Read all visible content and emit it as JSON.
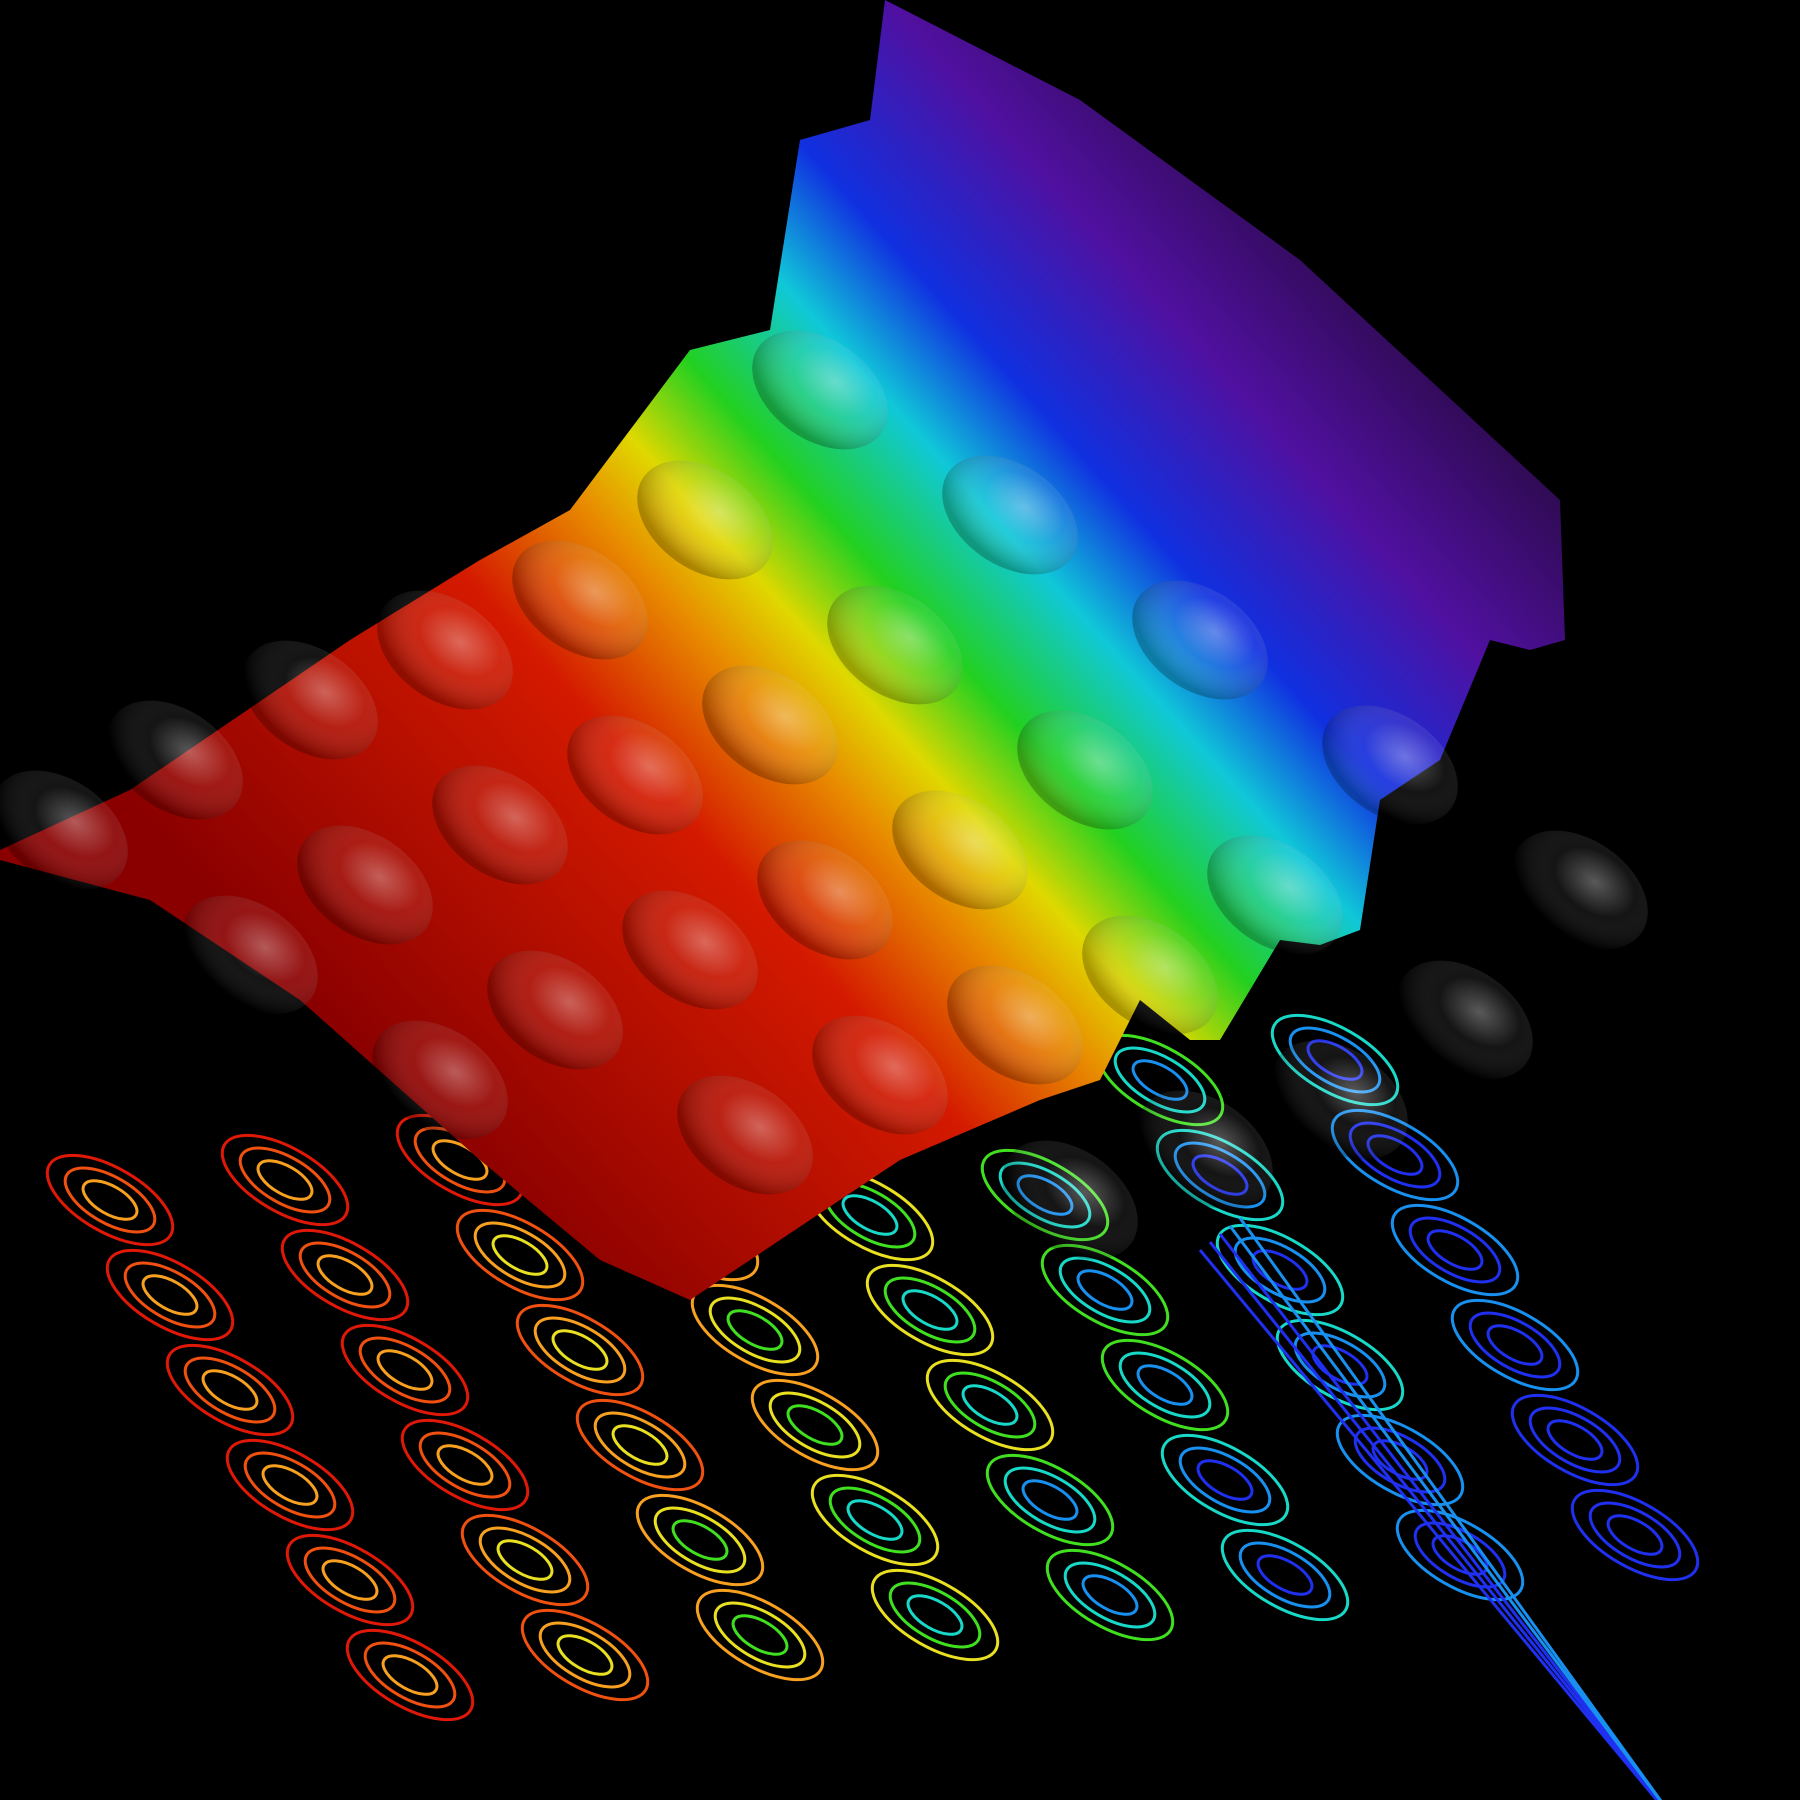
{
  "background": "#000000",
  "colormap": [
    "#8a0000",
    "#d41a00",
    "#e88a00",
    "#e0d800",
    "#22d020",
    "#10c8d8",
    "#1030e0",
    "#5010a0",
    "#200830"
  ],
  "contour_colors": [
    "#e01808",
    "#f05010",
    "#f8a020",
    "#e8e020",
    "#40e020",
    "#18d8c8",
    "#1890f0",
    "#2030f0"
  ]
}
